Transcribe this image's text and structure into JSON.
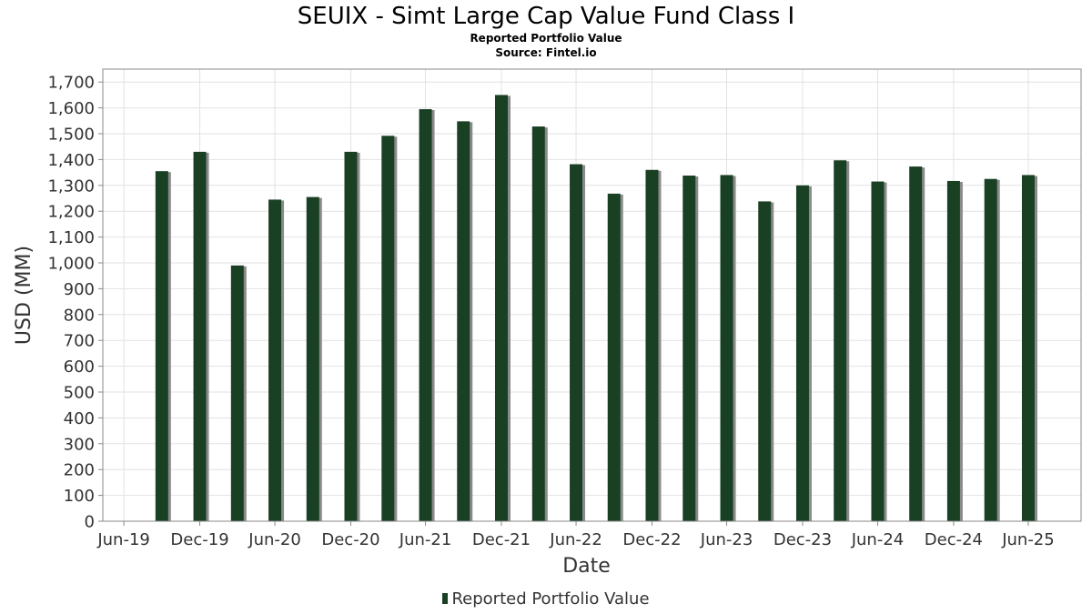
{
  "chart_data": {
    "type": "bar",
    "title": "SEUIX - Simt Large Cap Value Fund Class I",
    "subtitle": "Reported Portfolio Value",
    "source": "Source: Fintel.io",
    "xlabel": "Date",
    "ylabel": "USD (MM)",
    "ylim": [
      0,
      1750
    ],
    "yticks": [
      0,
      100,
      200,
      300,
      400,
      500,
      600,
      700,
      800,
      900,
      1000,
      1100,
      1200,
      1300,
      1400,
      1500,
      1600,
      1700
    ],
    "ytick_labels": [
      "0",
      "100",
      "200",
      "300",
      "400",
      "500",
      "600",
      "700",
      "800",
      "900",
      "1,000",
      "1,100",
      "1,200",
      "1,300",
      "1,400",
      "1,500",
      "1,600",
      "1,700"
    ],
    "xlim": [
      "2019-05-10",
      "2025-11-05"
    ],
    "xticks": [
      "2019-06-30",
      "2019-12-31",
      "2020-06-30",
      "2020-12-31",
      "2021-06-30",
      "2021-12-31",
      "2022-06-30",
      "2022-12-31",
      "2023-06-30",
      "2023-12-31",
      "2024-06-30",
      "2024-12-31",
      "2025-06-30"
    ],
    "xtick_labels": [
      "Jun-19",
      "Dec-19",
      "Jun-20",
      "Dec-20",
      "Jun-21",
      "Dec-21",
      "Jun-22",
      "Dec-22",
      "Jun-23",
      "Dec-23",
      "Jun-24",
      "Dec-24",
      "Jun-25"
    ],
    "grid": true,
    "legend_position": "bottom-center",
    "bar_color": "#1a4024",
    "shadow_color": "#8a8a8a",
    "series": [
      {
        "name": "Reported Portfolio Value",
        "x": [
          "2019-09-30",
          "2019-12-31",
          "2020-03-31",
          "2020-06-30",
          "2020-09-30",
          "2020-12-31",
          "2021-03-31",
          "2021-06-30",
          "2021-09-30",
          "2021-12-31",
          "2022-03-31",
          "2022-06-30",
          "2022-09-30",
          "2022-12-31",
          "2023-03-31",
          "2023-06-30",
          "2023-09-30",
          "2023-12-31",
          "2024-03-31",
          "2024-06-30",
          "2024-09-30",
          "2024-12-31",
          "2025-03-31",
          "2025-06-30"
        ],
        "values": [
          1355,
          1430,
          990,
          1245,
          1255,
          1430,
          1492,
          1595,
          1548,
          1650,
          1528,
          1382,
          1268,
          1360,
          1338,
          1340,
          1238,
          1300,
          1397,
          1315,
          1373,
          1317,
          1325,
          1340
        ]
      }
    ]
  }
}
